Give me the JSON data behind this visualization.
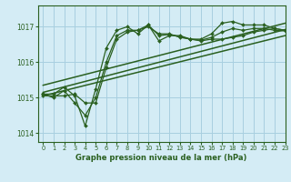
{
  "title": "Graphe pression niveau de la mer (hPa)",
  "bg_color": "#d4ecf5",
  "grid_color": "#a8cfe0",
  "line_color": "#2a6020",
  "xlim": [
    -0.5,
    23
  ],
  "ylim": [
    1013.75,
    1017.6
  ],
  "yticks": [
    1014,
    1015,
    1016,
    1017
  ],
  "xticks": [
    0,
    1,
    2,
    3,
    4,
    5,
    6,
    7,
    8,
    9,
    10,
    11,
    12,
    13,
    14,
    15,
    16,
    17,
    18,
    19,
    20,
    21,
    22,
    23
  ],
  "figwidth": 3.2,
  "figheight": 2.0,
  "dpi": 100,
  "series": [
    {
      "x": [
        0,
        1,
        2,
        3,
        4,
        5,
        6,
        7,
        8,
        9,
        10,
        11,
        12,
        13,
        14,
        15,
        16,
        17,
        18,
        19,
        20,
        21,
        22,
        23
      ],
      "y": [
        1015.1,
        1015.1,
        1015.3,
        1015.05,
        1014.2,
        1015.25,
        1016.4,
        1016.9,
        1017.0,
        1016.8,
        1017.05,
        1016.6,
        1016.75,
        1016.75,
        1016.65,
        1016.65,
        1016.8,
        1017.1,
        1017.15,
        1017.05,
        1017.05,
        1017.05,
        1016.95,
        1016.9
      ],
      "marker": "D",
      "linewidth": 0.9,
      "markersize": 2.0,
      "has_marker": true
    },
    {
      "x": [
        0,
        1,
        2,
        3,
        4,
        5,
        6,
        7,
        8,
        9,
        10,
        11,
        12,
        13,
        14,
        15,
        16,
        17,
        18,
        19,
        20,
        21,
        22,
        23
      ],
      "y": [
        1015.05,
        1015.05,
        1015.05,
        1015.1,
        1014.85,
        1014.85,
        1015.85,
        1016.65,
        1016.85,
        1016.9,
        1017.0,
        1016.8,
        1016.8,
        1016.7,
        1016.65,
        1016.6,
        1016.65,
        1016.65,
        1016.7,
        1016.75,
        1016.85,
        1016.9,
        1016.95,
        1016.9
      ],
      "marker": "D",
      "linewidth": 0.9,
      "markersize": 2.0,
      "has_marker": true
    },
    {
      "x": [
        0,
        1,
        2,
        3,
        4,
        5,
        6,
        7,
        8,
        9,
        10,
        11,
        12,
        13,
        14,
        15,
        16,
        17,
        18,
        19,
        20,
        21,
        22,
        23
      ],
      "y": [
        1015.1,
        1015.0,
        1015.2,
        1014.85,
        1014.5,
        1015.0,
        1016.0,
        1016.75,
        1016.9,
        1016.9,
        1017.05,
        1016.75,
        1016.78,
        1016.72,
        1016.65,
        1016.62,
        1016.7,
        1016.85,
        1016.95,
        1016.9,
        1016.95,
        1016.95,
        1016.9,
        1016.88
      ],
      "marker": "D",
      "linewidth": 0.9,
      "markersize": 2.0,
      "has_marker": true
    },
    {
      "x": [
        0,
        23
      ],
      "y": [
        1015.35,
        1017.1
      ],
      "marker": null,
      "linewidth": 1.1,
      "markersize": 0,
      "has_marker": false
    },
    {
      "x": [
        0,
        23
      ],
      "y": [
        1015.05,
        1016.75
      ],
      "marker": null,
      "linewidth": 1.1,
      "markersize": 0,
      "has_marker": false
    },
    {
      "x": [
        0,
        23
      ],
      "y": [
        1015.15,
        1016.92
      ],
      "marker": null,
      "linewidth": 1.1,
      "markersize": 0,
      "has_marker": false
    }
  ]
}
